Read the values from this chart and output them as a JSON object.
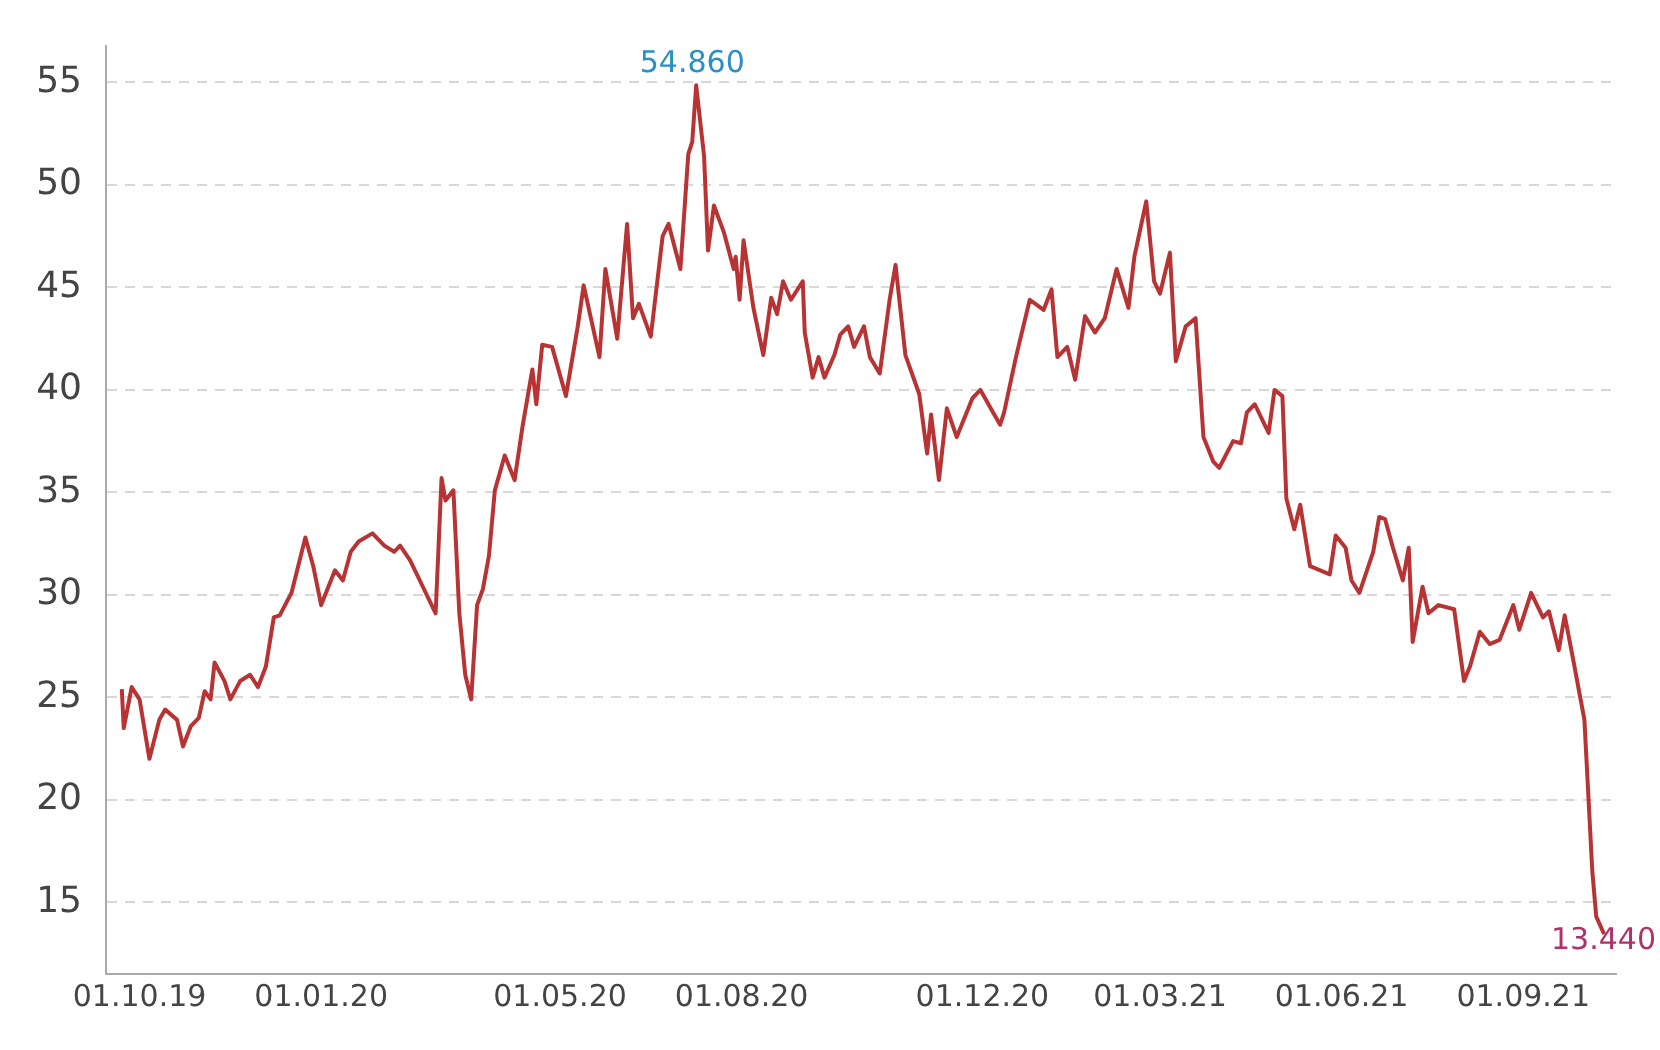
{
  "chart_data": {
    "type": "line",
    "x": [
      "2019-09-22",
      "2019-09-23",
      "2019-09-27",
      "2019-10-01",
      "2019-10-06",
      "2019-10-11",
      "2019-10-14",
      "2019-10-20",
      "2019-10-23",
      "2019-10-27",
      "2019-10-31",
      "2019-11-03",
      "2019-11-06",
      "2019-11-08",
      "2019-11-13",
      "2019-11-16",
      "2019-11-21",
      "2019-11-26",
      "2019-11-30",
      "2019-12-04",
      "2019-12-08",
      "2019-12-11",
      "2019-12-17",
      "2019-12-24",
      "2019-12-28",
      "2020-01-01",
      "2020-01-08",
      "2020-01-12",
      "2020-01-16",
      "2020-01-20",
      "2020-01-27",
      "2020-02-02",
      "2020-02-07",
      "2020-02-10",
      "2020-02-15",
      "2020-02-20",
      "2020-02-28",
      "2020-03-02",
      "2020-03-04",
      "2020-03-08",
      "2020-03-11",
      "2020-03-14",
      "2020-03-17",
      "2020-03-20",
      "2020-03-23",
      "2020-03-26",
      "2020-03-29",
      "2020-04-03",
      "2020-04-08",
      "2020-04-12",
      "2020-04-17",
      "2020-04-19",
      "2020-04-22",
      "2020-04-27",
      "2020-05-04",
      "2020-05-10",
      "2020-05-13",
      "2020-05-21",
      "2020-05-24",
      "2020-05-30",
      "2020-06-04",
      "2020-06-07",
      "2020-06-10",
      "2020-06-16",
      "2020-06-22",
      "2020-06-25",
      "2020-07-01",
      "2020-07-05",
      "2020-07-07",
      "2020-07-09",
      "2020-07-13",
      "2020-07-15",
      "2020-07-18",
      "2020-07-23",
      "2020-07-28",
      "2020-07-29",
      "2020-07-31",
      "2020-08-02",
      "2020-08-07",
      "2020-08-12",
      "2020-08-16",
      "2020-08-19",
      "2020-08-22",
      "2020-08-26",
      "2020-09-01",
      "2020-09-02",
      "2020-09-06",
      "2020-09-09",
      "2020-09-12",
      "2020-09-17",
      "2020-09-20",
      "2020-09-24",
      "2020-09-27",
      "2020-10-02",
      "2020-10-05",
      "2020-10-10",
      "2020-10-15",
      "2020-10-18",
      "2020-10-23",
      "2020-10-30",
      "2020-11-03",
      "2020-11-05",
      "2020-11-09",
      "2020-11-13",
      "2020-11-18",
      "2020-11-26",
      "2020-11-30",
      "2020-12-07",
      "2020-12-10",
      "2020-12-12",
      "2020-12-18",
      "2020-12-25",
      "2021-01-01",
      "2021-01-05",
      "2021-01-08",
      "2021-01-13",
      "2021-01-17",
      "2021-01-22",
      "2021-01-27",
      "2021-02-01",
      "2021-02-04",
      "2021-02-07",
      "2021-02-13",
      "2021-02-16",
      "2021-02-22",
      "2021-02-26",
      "2021-03-01",
      "2021-03-06",
      "2021-03-09",
      "2021-03-14",
      "2021-03-19",
      "2021-03-23",
      "2021-03-28",
      "2021-03-31",
      "2021-04-07",
      "2021-04-11",
      "2021-04-14",
      "2021-04-18",
      "2021-04-25",
      "2021-04-28",
      "2021-05-02",
      "2021-05-04",
      "2021-05-08",
      "2021-05-11",
      "2021-05-16",
      "2021-05-26",
      "2021-05-29",
      "2021-06-03",
      "2021-06-06",
      "2021-06-10",
      "2021-06-17",
      "2021-06-20",
      "2021-06-23",
      "2021-06-27",
      "2021-07-02",
      "2021-07-05",
      "2021-07-07",
      "2021-07-12",
      "2021-07-15",
      "2021-07-20",
      "2021-07-28",
      "2021-08-02",
      "2021-08-05",
      "2021-08-10",
      "2021-08-15",
      "2021-08-20",
      "2021-08-27",
      "2021-08-30",
      "2021-09-05",
      "2021-09-11",
      "2021-09-14",
      "2021-09-19",
      "2021-09-22",
      "2021-09-26",
      "2021-10-02",
      "2021-10-06",
      "2021-10-08",
      "2021-10-12"
    ],
    "series": [
      {
        "color": "#b83434",
        "values": [
          25.4,
          23.5,
          25.5,
          24.9,
          22.0,
          23.9,
          24.4,
          23.9,
          22.6,
          23.6,
          24.0,
          25.3,
          24.9,
          26.7,
          25.8,
          24.9,
          25.8,
          26.1,
          25.5,
          26.5,
          28.9,
          29.0,
          30.1,
          32.8,
          31.4,
          29.5,
          31.2,
          30.7,
          32.1,
          32.6,
          33.0,
          32.4,
          32.1,
          32.4,
          31.7,
          30.7,
          29.1,
          35.7,
          34.6,
          35.1,
          29.1,
          26.1,
          24.9,
          29.5,
          30.3,
          31.9,
          35.1,
          36.8,
          35.6,
          38.2,
          41.0,
          39.3,
          42.2,
          42.1,
          39.7,
          43.1,
          45.1,
          41.6,
          45.9,
          42.5,
          48.1,
          43.5,
          44.2,
          42.6,
          47.5,
          48.1,
          45.9,
          51.5,
          52.1,
          54.86,
          51.4,
          46.8,
          49.0,
          47.7,
          45.9,
          46.5,
          44.4,
          47.3,
          44.0,
          41.7,
          44.5,
          43.7,
          45.3,
          44.4,
          45.3,
          42.8,
          40.6,
          41.6,
          40.6,
          41.7,
          42.7,
          43.1,
          42.1,
          43.1,
          41.6,
          40.8,
          44.4,
          46.1,
          41.7,
          39.8,
          36.9,
          38.8,
          35.6,
          39.1,
          37.7,
          39.6,
          40.0,
          38.8,
          38.3,
          38.9,
          41.6,
          44.4,
          43.9,
          44.9,
          41.6,
          42.1,
          40.5,
          43.6,
          42.8,
          43.5,
          44.7,
          45.9,
          44.0,
          46.5,
          49.2,
          45.3,
          44.7,
          46.7,
          41.4,
          43.1,
          43.5,
          37.7,
          36.5,
          36.2,
          37.5,
          37.4,
          38.9,
          39.3,
          37.9,
          40.0,
          39.7,
          34.7,
          33.2,
          34.4,
          31.4,
          31.0,
          32.9,
          32.3,
          30.7,
          30.1,
          32.1,
          33.8,
          33.7,
          32.3,
          30.7,
          32.3,
          27.7,
          30.4,
          29.1,
          29.5,
          29.3,
          25.8,
          26.5,
          28.2,
          27.6,
          27.8,
          29.5,
          28.3,
          30.1,
          28.9,
          29.2,
          27.3,
          29.0,
          27.0,
          23.9,
          16.5,
          14.3,
          13.44
        ]
      }
    ],
    "xlim": [
      "2019-09-14",
      "2021-10-18"
    ],
    "xticks": [
      {
        "value": "2019-10-01",
        "label": "01.10.19"
      },
      {
        "value": "2020-01-01",
        "label": "01.01.20"
      },
      {
        "value": "2020-05-01",
        "label": "01.05.20"
      },
      {
        "value": "2020-08-01",
        "label": "01.08.20"
      },
      {
        "value": "2020-12-01",
        "label": "01.12.20"
      },
      {
        "value": "2021-03-01",
        "label": "01.03.21"
      },
      {
        "value": "2021-06-01",
        "label": "01.06.21"
      },
      {
        "value": "2021-09-01",
        "label": "01.09.21"
      }
    ],
    "ylim": [
      11.5,
      56.8
    ],
    "yticks": [
      15,
      20,
      25,
      30,
      35,
      40,
      45,
      50,
      55
    ],
    "grid": "y",
    "annotations": [
      {
        "text": "54.860",
        "x": "2020-07-07",
        "y": 54.86
      },
      {
        "text": "13.440",
        "x": "2021-10-12",
        "y": 13.44
      }
    ]
  }
}
